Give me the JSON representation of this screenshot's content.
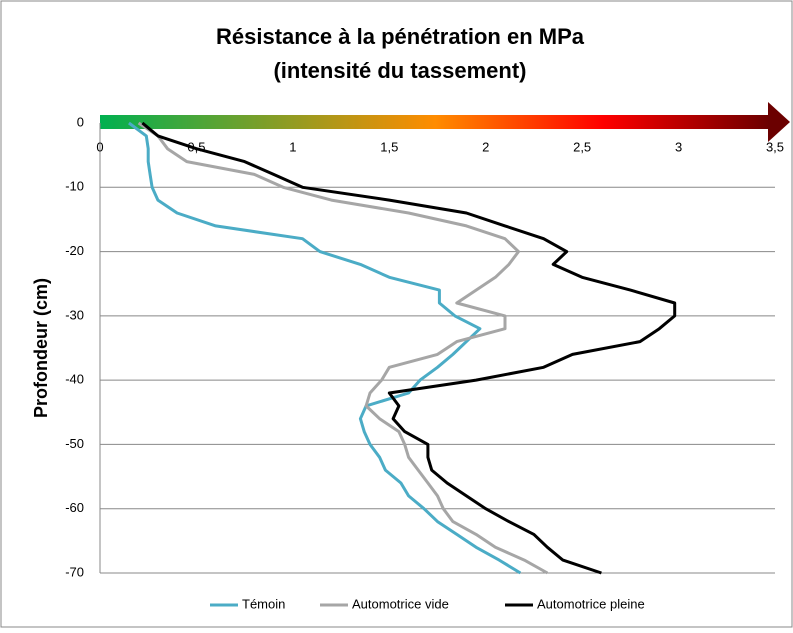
{
  "chart_data": {
    "type": "line",
    "title": [
      "Résistance à la pénétration en MPa",
      "(intensité du tassement)"
    ],
    "y_label": "Profondeur  (cm)",
    "y": [
      0,
      -2,
      -4,
      -6,
      -8,
      -10,
      -12,
      -14,
      -16,
      -18,
      -20,
      -22,
      -24,
      -26,
      -28,
      -30,
      -32,
      -34,
      -36,
      -38,
      -40,
      -42,
      -44,
      -46,
      -48,
      -50,
      -52,
      -54,
      -56,
      -58,
      -60,
      -62,
      -64,
      -66,
      -68,
      -70
    ],
    "series": [
      {
        "name": "Témoin",
        "color": "#4bacc6",
        "values": [
          0.15,
          0.24,
          0.25,
          0.25,
          0.26,
          0.27,
          0.3,
          0.4,
          0.6,
          1.05,
          1.14,
          1.35,
          1.5,
          1.76,
          1.76,
          1.84,
          1.97,
          1.9,
          1.83,
          1.75,
          1.66,
          1.6,
          1.38,
          1.35,
          1.37,
          1.4,
          1.45,
          1.48,
          1.56,
          1.6,
          1.68,
          1.75,
          1.85,
          1.95,
          2.07,
          2.18
        ]
      },
      {
        "name": "Automotrice vide",
        "color": "#a6a6a6",
        "values": [
          0.2,
          0.3,
          0.35,
          0.45,
          0.8,
          0.95,
          1.2,
          1.6,
          1.9,
          2.1,
          2.17,
          2.12,
          2.05,
          1.95,
          1.85,
          2.1,
          2.1,
          1.85,
          1.75,
          1.5,
          1.46,
          1.4,
          1.38,
          1.45,
          1.55,
          1.58,
          1.6,
          1.65,
          1.7,
          1.75,
          1.78,
          1.83,
          1.95,
          2.05,
          2.2,
          2.32
        ]
      },
      {
        "name": "Automotrice pleine",
        "color": "#000000",
        "values": [
          0.22,
          0.3,
          0.5,
          0.75,
          0.9,
          1.05,
          1.5,
          1.9,
          2.1,
          2.3,
          2.42,
          2.35,
          2.5,
          2.75,
          2.98,
          2.98,
          2.9,
          2.8,
          2.45,
          2.3,
          1.95,
          1.5,
          1.55,
          1.52,
          1.58,
          1.7,
          1.7,
          1.72,
          1.8,
          1.9,
          2.0,
          2.12,
          2.25,
          2.32,
          2.4,
          2.6
        ]
      }
    ],
    "xlim": [
      0,
      3.5
    ],
    "xticks": [
      0,
      {
        "value": 0.5,
        "label": "0,5"
      },
      1,
      {
        "value": 1.5,
        "label": "1,5"
      },
      2,
      {
        "value": 2.5,
        "label": "2,5"
      },
      3,
      {
        "value": 3.5,
        "label": "3,5"
      }
    ],
    "ylim": [
      -70,
      0
    ],
    "yticks": [
      0,
      -10,
      -20,
      -30,
      -40,
      -50,
      -60,
      -70
    ],
    "grid": true,
    "legend": "bottom"
  }
}
